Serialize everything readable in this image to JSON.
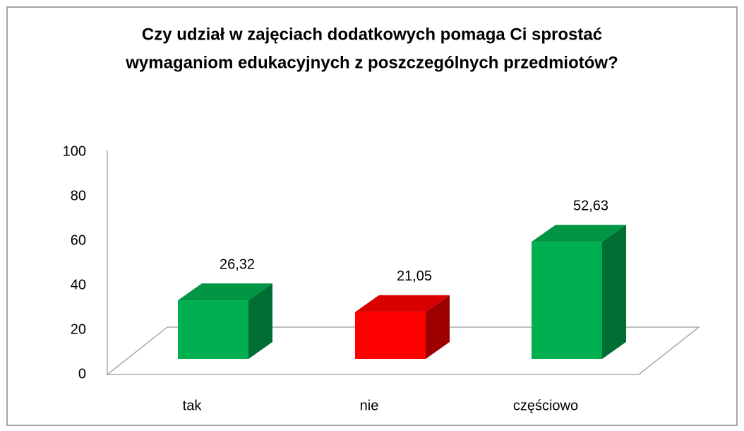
{
  "chart_data": {
    "type": "bar3d",
    "title": [
      "Czy udział w zajęciach dodatkowych pomaga Ci sprostać",
      "wymaganiom edukacyjnych z poszczególnych przedmiotów?"
    ],
    "categories": [
      "tak",
      "nie",
      "częściowo"
    ],
    "values": [
      26.32,
      21.05,
      52.63
    ],
    "value_labels": [
      "26,32",
      "21,05",
      "52,63"
    ],
    "colors": [
      "#00b050",
      "#ff0000",
      "#00b050"
    ],
    "ylim": [
      0,
      100
    ],
    "yticks": [
      0,
      20,
      40,
      60,
      80,
      100
    ],
    "grid": false
  }
}
